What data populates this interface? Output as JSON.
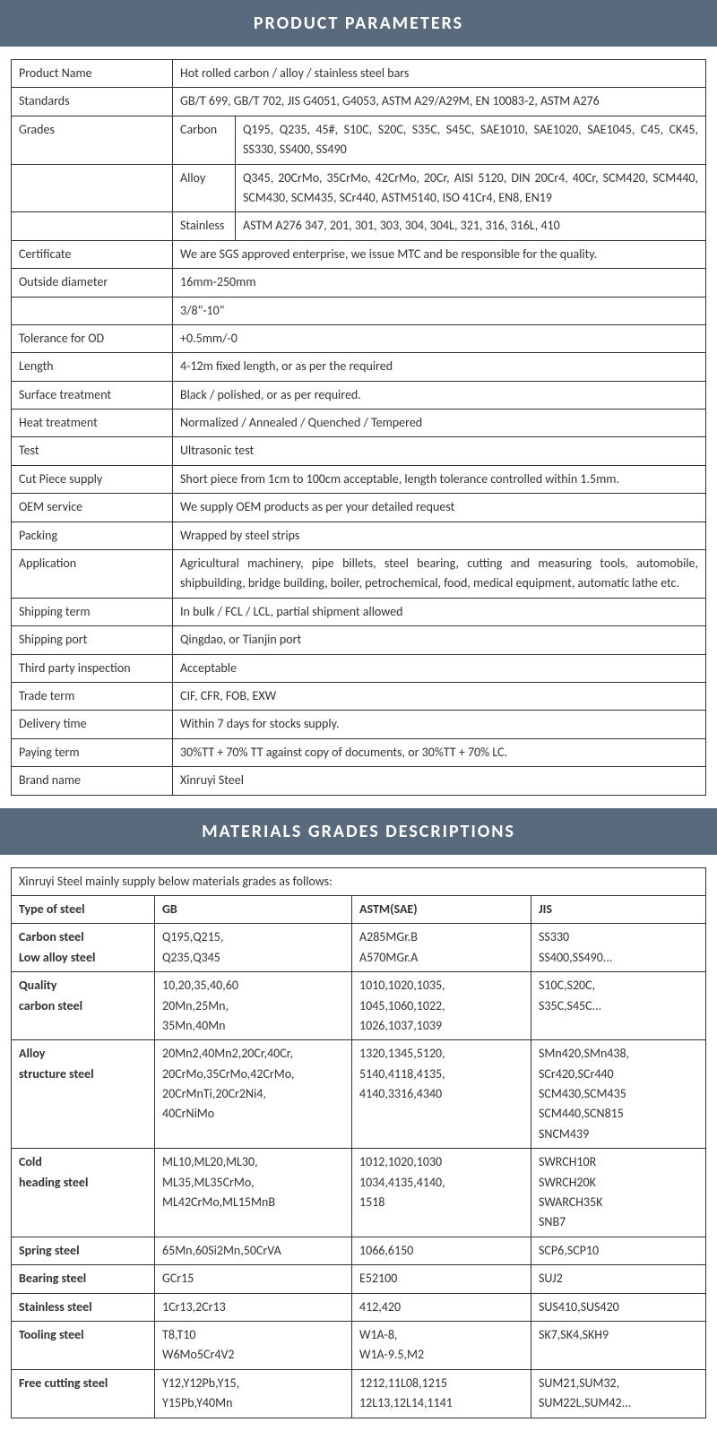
{
  "headers": {
    "product_params": "PRODUCT PARAMETERS",
    "materials_grades": "MATERIALS GRADES DESCRIPTIONS"
  },
  "params": {
    "product_name_label": "Product Name",
    "product_name_value": "Hot rolled carbon / alloy / stainless steel bars",
    "standards_label": "Standards",
    "standards_value": "GB/T 699, GB/T 702, JIS G4051, G4053, ASTM A29/A29M, EN 10083-2, ASTM A276",
    "grades_label": "Grades",
    "grades_carbon_label": "Carbon",
    "grades_carbon_value": "Q195, Q235, 45#, S10C, S20C, S35C, S45C, SAE1010, SAE1020, SAE1045, C45, CK45, SS330, SS400, SS490",
    "grades_alloy_label": "Alloy",
    "grades_alloy_value": "Q345, 20CrMo, 35CrMo, 42CrMo, 20Cr, AISI 5120, DIN 20Cr4, 40Cr, SCM420, SCM440, SCM430, SCM435, SCr440, ASTM5140, ISO 41Cr4, EN8, EN19",
    "grades_stainless_label": "Stainless",
    "grades_stainless_value": "ASTM A276 347, 201, 301, 303, 304, 304L, 321, 316, 316L, 410",
    "certificate_label": "Certificate",
    "certificate_value": "We are SGS approved enterprise, we issue MTC and be responsible for the quality.",
    "od_label": "Outside diameter",
    "od_value1": "16mm-250mm",
    "od_value2": "3/8\"-10\"",
    "tolerance_label": "Tolerance for OD",
    "tolerance_value": "+0.5mm/-0",
    "length_label": "Length",
    "length_value": "4-12m fixed length, or as per the required",
    "surface_label": "Surface treatment",
    "surface_value": "Black / polished, or as per required.",
    "heat_label": "Heat treatment",
    "heat_value": "Normalized / Annealed / Quenched / Tempered",
    "test_label": "Test",
    "test_value": "Ultrasonic test",
    "cutpiece_label": "Cut Piece supply",
    "cutpiece_value": "Short piece from 1cm to 100cm acceptable, length tolerance controlled within 1.5mm.",
    "oem_label": "OEM service",
    "oem_value": "We supply OEM products as per your detailed request",
    "packing_label": "Packing",
    "packing_value": "Wrapped by steel strips",
    "application_label": "Application",
    "application_value": "Agricultural machinery, pipe billets, steel bearing, cutting and measuring tools, automobile, shipbuilding, bridge building, boiler, petrochemical, food, medical equipment, automatic lathe etc.",
    "shipterm_label": "Shipping term",
    "shipterm_value": "In bulk / FCL / LCL, partial shipment allowed",
    "shipport_label": "Shipping port",
    "shipport_value": "Qingdao, or Tianjin port",
    "thirdparty_label": "Third party inspection",
    "thirdparty_value": "Acceptable",
    "tradeterm_label": "Trade term",
    "tradeterm_value": "CIF, CFR, FOB, EXW",
    "delivery_label": "Delivery time",
    "delivery_value": "Within 7 days for stocks supply.",
    "paying_label": "Paying term",
    "paying_value": "30%TT + 70% TT against copy of documents, or 30%TT + 70% LC.",
    "brand_label": "Brand name",
    "brand_value": "Xinruyi Steel"
  },
  "materials": {
    "intro": "Xinruyi Steel mainly supply below materials grades as follows:",
    "col_type": "Type of steel",
    "col_gb": "GB",
    "col_astm": "ASTM(SAE)",
    "col_jis": "JIS",
    "rows": [
      {
        "type": "Carbon steel\nLow alloy steel",
        "gb": "Q195,Q215,\nQ235,Q345",
        "astm": "A285MGr.B\nA570MGr.A",
        "jis": "SS330\nSS400,SS490..."
      },
      {
        "type": "Quality\ncarbon steel",
        "gb": "10,20,35,40,60\n20Mn,25Mn,\n35Mn,40Mn",
        "astm": "1010,1020,1035,\n1045,1060,1022,\n1026,1037,1039",
        "jis": "S10C,S20C,\nS35C,S45C..."
      },
      {
        "type": "Alloy\nstructure steel",
        "gb": "20Mn2,40Mn2,20Cr,40Cr,\n20CrMo,35CrMo,42CrMo,\n20CrMnTi,20Cr2Ni4,\n40CrNiMo",
        "astm": "1320,1345,5120,\n5140,4118,4135,\n4140,3316,4340",
        "jis": "SMn420,SMn438,\nSCr420,SCr440\nSCM430,SCM435\nSCM440,SCN815\nSNCM439"
      },
      {
        "type": "Cold\nheading steel",
        "gb": "ML10,ML20,ML30,\nML35,ML35CrMo,\nML42CrMo,ML15MnB",
        "astm": "1012,1020,1030\n1034,4135,4140,\n1518",
        "jis": "SWRCH10R\nSWRCH20K\nSWARCH35K\nSNB7"
      },
      {
        "type": "Spring steel",
        "gb": "65Mn,60Si2Mn,50CrVA",
        "astm": "1066,6150",
        "jis": "SCP6,SCP10"
      },
      {
        "type": "Bearing steel",
        "gb": "GCr15",
        "astm": "E52100",
        "jis": "SUJ2"
      },
      {
        "type": "Stainless steel",
        "gb": "1Cr13,2Cr13",
        "astm": "412,420",
        "jis": "SUS410,SUS420"
      },
      {
        "type": "Tooling steel",
        "gb": "T8,T10\nW6Mo5Cr4V2",
        "astm": "W1A-8,\nW1A-9.5,M2",
        "jis": "SK7,SK4,SKH9"
      },
      {
        "type": "Free cutting steel",
        "gb": "Y12,Y12Pb,Y15,\nY15Pb,Y40Mn",
        "astm": "1212,11L08,1215\n12L13,12L14,1141",
        "jis": "SUM21,SUM32,\nSUM22L,SUM42..."
      }
    ]
  },
  "styling": {
    "header_bg": "#5a6a7d",
    "header_fg": "#ffffff",
    "border_color": "#333333",
    "body_font_size": 14,
    "header_font_size": 20
  }
}
